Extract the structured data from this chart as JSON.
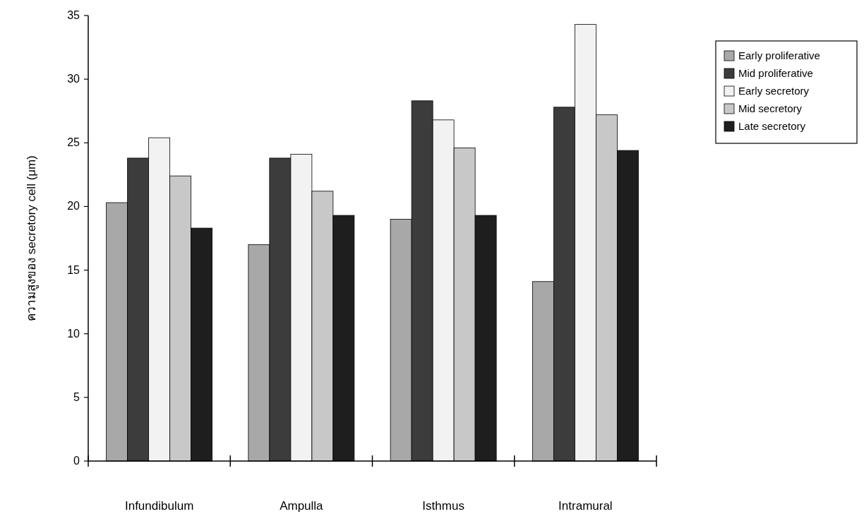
{
  "chart_data": {
    "type": "bar",
    "ylabel": "ความสูงของ secretory cell (μm)",
    "categories": [
      "Infundibulum",
      "Ampulla",
      "Isthmus",
      "Intramural"
    ],
    "series": [
      {
        "name": "Early proliferative",
        "color": "#a8a8a8",
        "values": [
          20.3,
          17.0,
          19.0,
          14.1
        ]
      },
      {
        "name": "Mid proliferative",
        "color": "#3c3c3c",
        "values": [
          23.8,
          23.8,
          28.3,
          27.8
        ]
      },
      {
        "name": "Early secretory",
        "color": "#f2f2f2",
        "values": [
          25.4,
          24.1,
          26.8,
          34.3
        ]
      },
      {
        "name": "Mid secretory",
        "color": "#c8c8c8",
        "values": [
          22.4,
          21.2,
          24.6,
          27.2
        ]
      },
      {
        "name": "Late secretory",
        "color": "#1e1e1e",
        "values": [
          18.3,
          19.3,
          19.3,
          24.4
        ]
      }
    ],
    "ylim": [
      0,
      35
    ],
    "yticks": [
      0,
      5,
      10,
      15,
      20,
      25,
      30,
      35
    ],
    "legend": "top right",
    "grid": false
  }
}
